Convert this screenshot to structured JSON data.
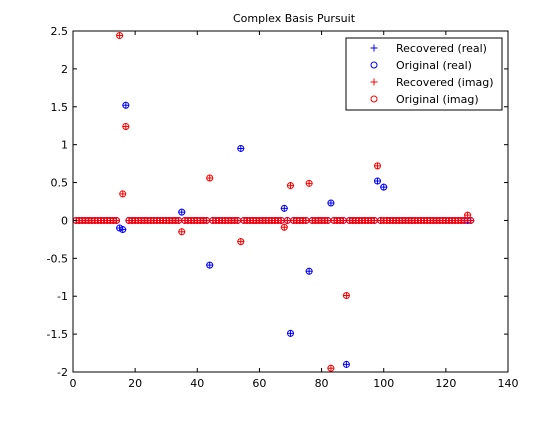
{
  "chart_data": {
    "type": "scatter",
    "title": "Complex Basis Pursuit",
    "xlim": [
      0,
      140
    ],
    "ylim": [
      -2,
      2.5
    ],
    "xticks": [
      "0",
      "20",
      "40",
      "60",
      "80",
      "100",
      "120",
      "140"
    ],
    "yticks": [
      "-2",
      "-1.5",
      "-1",
      "-0.5",
      "0",
      "0.5",
      "1",
      "1.5",
      "2",
      "2.5"
    ],
    "grid": false,
    "legend_position": "top-right",
    "n": 128,
    "series": [
      {
        "name": "Recovered (real)",
        "marker": "plus",
        "color": "#0000ff",
        "nonzero": [
          [
            15,
            -0.1
          ],
          [
            16,
            -0.12
          ],
          [
            17,
            1.52
          ],
          [
            35,
            0.11
          ],
          [
            44,
            -0.59
          ],
          [
            54,
            0.95
          ],
          [
            68,
            0.16
          ],
          [
            70,
            -1.49
          ],
          [
            76,
            -0.67
          ],
          [
            83,
            0.23
          ],
          [
            88,
            -1.9
          ],
          [
            98,
            0.52
          ],
          [
            100,
            0.44
          ]
        ]
      },
      {
        "name": "Original (real)",
        "marker": "circle",
        "color": "#0000ff",
        "nonzero": [
          [
            15,
            -0.1
          ],
          [
            16,
            -0.12
          ],
          [
            17,
            1.52
          ],
          [
            35,
            0.11
          ],
          [
            44,
            -0.59
          ],
          [
            54,
            0.95
          ],
          [
            68,
            0.16
          ],
          [
            70,
            -1.49
          ],
          [
            76,
            -0.67
          ],
          [
            83,
            0.23
          ],
          [
            88,
            -1.9
          ],
          [
            98,
            0.52
          ],
          [
            100,
            0.44
          ]
        ]
      },
      {
        "name": "Recovered (imag)",
        "marker": "plus",
        "color": "#ff0000",
        "nonzero": [
          [
            15,
            2.44
          ],
          [
            16,
            0.35
          ],
          [
            17,
            1.24
          ],
          [
            35,
            -0.15
          ],
          [
            44,
            0.56
          ],
          [
            54,
            -0.28
          ],
          [
            68,
            -0.09
          ],
          [
            70,
            0.46
          ],
          [
            76,
            0.49
          ],
          [
            83,
            -1.95
          ],
          [
            88,
            -0.99
          ],
          [
            98,
            0.72
          ],
          [
            127,
            0.07
          ]
        ]
      },
      {
        "name": "Original (imag)",
        "marker": "circle",
        "color": "#ff0000",
        "nonzero": [
          [
            15,
            2.44
          ],
          [
            16,
            0.35
          ],
          [
            17,
            1.24
          ],
          [
            35,
            -0.15
          ],
          [
            44,
            0.56
          ],
          [
            54,
            -0.28
          ],
          [
            68,
            -0.09
          ],
          [
            70,
            0.46
          ],
          [
            76,
            0.49
          ],
          [
            83,
            -1.95
          ],
          [
            88,
            -0.99
          ],
          [
            98,
            0.72
          ],
          [
            127,
            0.07
          ]
        ]
      }
    ]
  }
}
